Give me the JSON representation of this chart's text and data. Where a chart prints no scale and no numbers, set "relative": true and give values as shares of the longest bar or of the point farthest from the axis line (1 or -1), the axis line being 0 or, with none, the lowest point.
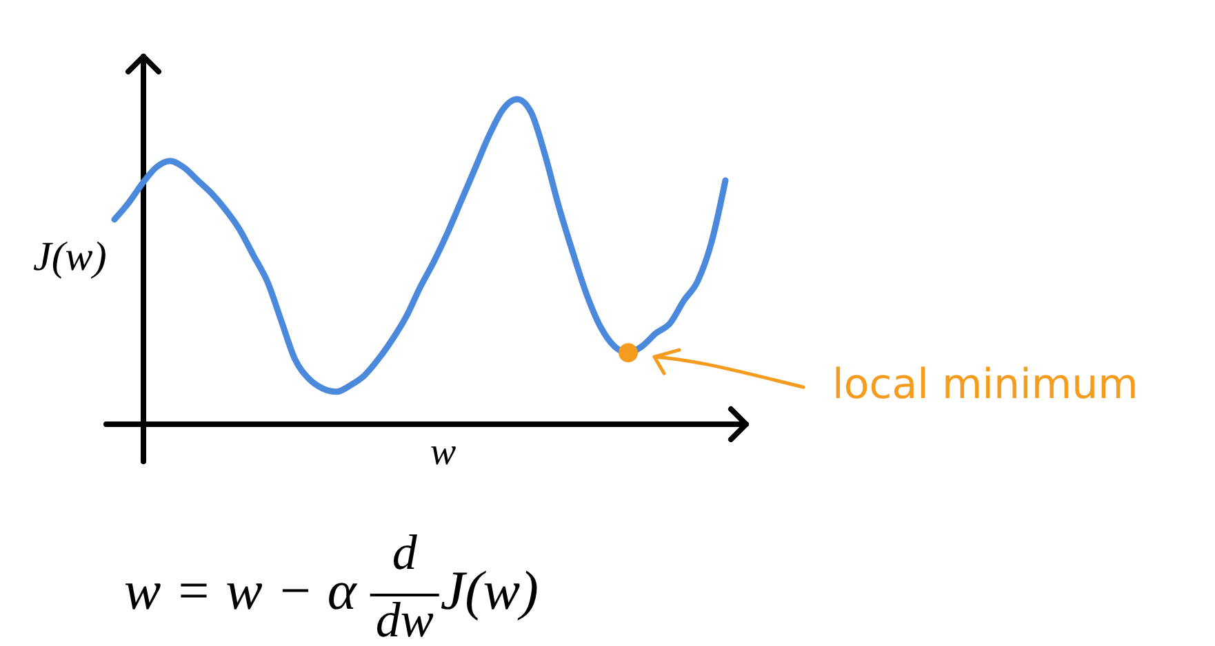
{
  "chart_data": {
    "type": "line",
    "relative": true,
    "xlabel": "w",
    "ylabel": "J(w)",
    "categories": [
      null,
      null,
      null,
      null,
      null,
      null,
      null,
      null,
      null,
      null,
      null,
      null,
      null,
      null,
      null,
      null,
      null,
      null,
      null,
      null,
      null,
      null,
      null,
      null,
      null,
      null,
      null,
      null,
      null,
      null,
      null,
      null,
      null,
      null,
      null,
      null,
      null,
      null,
      null,
      null,
      null,
      null,
      null,
      null,
      null
    ],
    "series": [
      {
        "color": "#4a89dc",
        "values": [
          0.63,
          0.68,
          0.74,
          0.79,
          0.81,
          0.79,
          0.75,
          0.71,
          0.66,
          0.6,
          0.52,
          0.44,
          0.32,
          0.2,
          0.14,
          0.11,
          0.1,
          0.12,
          0.15,
          0.2,
          0.26,
          0.33,
          0.42,
          0.5,
          0.59,
          0.69,
          0.79,
          0.89,
          0.97,
          1,
          0.96,
          0.83,
          0.67,
          0.53,
          0.4,
          0.3,
          0.24,
          0.22,
          0.24,
          0.28,
          0.31,
          0.38,
          0.44,
          0.56,
          0.75
        ]
      }
    ],
    "annotations": [
      "local minimum",
      "w = w − α $^{d}$$_{dw}$J(w)"
    ]
  }
}
